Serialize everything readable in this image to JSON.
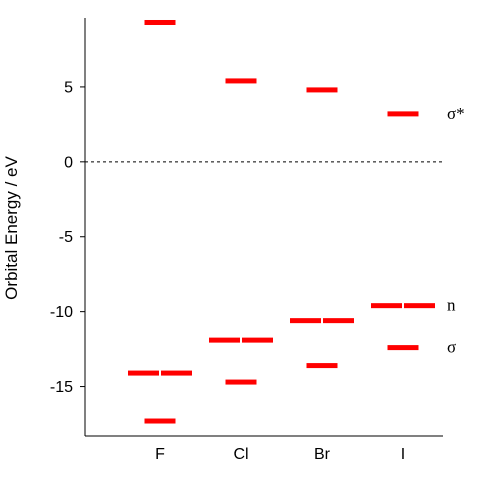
{
  "chart_data": {
    "type": "scatter",
    "ylabel": "Orbital Energy / eV",
    "xlabel": "",
    "categories": [
      "F",
      "Cl",
      "Br",
      "I"
    ],
    "ylim": [
      -18.3,
      9.6
    ],
    "yticks": [
      5,
      0,
      -5,
      -10,
      -15
    ],
    "ytick_labels": [
      "5",
      "0",
      "-5",
      "-10",
      "-15"
    ],
    "zero_line": {
      "value": 0,
      "style": "dashed"
    },
    "grid": false,
    "series": [
      {
        "name": "σ*",
        "values": [
          9.3,
          5.4,
          4.8,
          3.2
        ],
        "paired": [
          false,
          false,
          false,
          false
        ]
      },
      {
        "name": "n",
        "values": [
          -14.1,
          -11.9,
          -10.6,
          -9.6
        ],
        "paired": [
          true,
          true,
          true,
          true
        ]
      },
      {
        "name": "σ",
        "values": [
          -17.3,
          -14.7,
          -13.6,
          -12.4
        ],
        "paired": [
          false,
          false,
          false,
          false
        ]
      }
    ],
    "mark_color": "#ff0000"
  }
}
